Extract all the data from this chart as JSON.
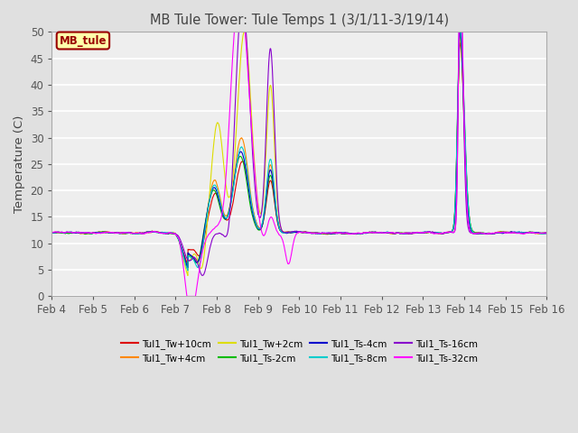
{
  "title": "MB Tule Tower: Tule Temps 1 (3/1/11-3/19/14)",
  "ylabel": "Temperature (C)",
  "ylim": [
    0,
    50
  ],
  "yticks": [
    0,
    5,
    10,
    15,
    20,
    25,
    30,
    35,
    40,
    45,
    50
  ],
  "xtick_labels": [
    "Feb 4",
    "Feb 5",
    "Feb 6",
    "Feb 7",
    "Feb 8",
    "Feb 9",
    "Feb 10",
    "Feb 11",
    "Feb 12",
    "Feb 13",
    "Feb 14",
    "Feb 15",
    "Feb 16"
  ],
  "legend_box_label": "MB_tule",
  "legend_box_color": "#990000",
  "legend_box_bg": "#ffffaa",
  "series": [
    {
      "label": "Tul1_Tw+10cm",
      "color": "#dd0000"
    },
    {
      "label": "Tul1_Tw+4cm",
      "color": "#ff8800"
    },
    {
      "label": "Tul1_Tw+2cm",
      "color": "#dddd00"
    },
    {
      "label": "Tul1_Ts-2cm",
      "color": "#00bb00"
    },
    {
      "label": "Tul1_Ts-4cm",
      "color": "#0000cc"
    },
    {
      "label": "Tul1_Ts-8cm",
      "color": "#00cccc"
    },
    {
      "label": "Tul1_Ts-16cm",
      "color": "#8800cc"
    },
    {
      "label": "Tul1_Ts-32cm",
      "color": "#ff00ff"
    }
  ],
  "bg_color": "#e0e0e0",
  "plot_bg": "#eeeeee"
}
